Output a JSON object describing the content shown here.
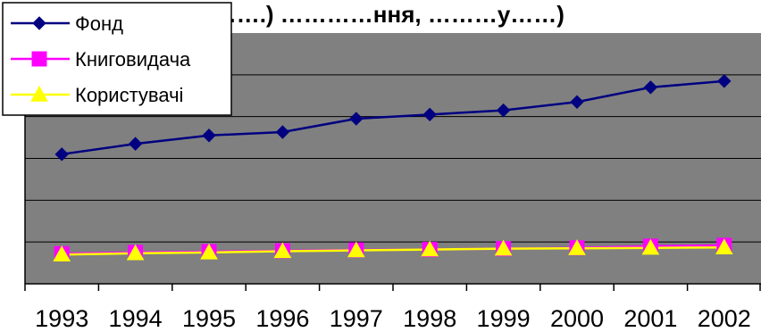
{
  "chart_data": {
    "type": "line",
    "title": "(…….) …………ння, ………у……)",
    "categories": [
      "1993",
      "1994",
      "1995",
      "1996",
      "1997",
      "1998",
      "1999",
      "2000",
      "2001",
      "2002"
    ],
    "series": [
      {
        "name": "Фонд",
        "color": "#000080",
        "marker": "diamond",
        "values": [
          3.1,
          3.35,
          3.55,
          3.63,
          3.95,
          4.05,
          4.15,
          4.35,
          4.7,
          4.85
        ]
      },
      {
        "name": "Книговидача",
        "color": "#ff00ff",
        "marker": "square",
        "values": [
          0.72,
          0.75,
          0.77,
          0.79,
          0.81,
          0.82,
          0.84,
          0.86,
          0.9,
          0.92
        ]
      },
      {
        "name": "Користувачі",
        "color": "#ffff00",
        "marker": "triangle",
        "values": [
          0.7,
          0.73,
          0.75,
          0.78,
          0.8,
          0.82,
          0.84,
          0.85,
          0.86,
          0.87
        ]
      }
    ],
    "ylim": [
      0,
      6
    ],
    "gridlines": "horizontal",
    "plot_area_color": "#808080",
    "legend_position": "top-left"
  }
}
